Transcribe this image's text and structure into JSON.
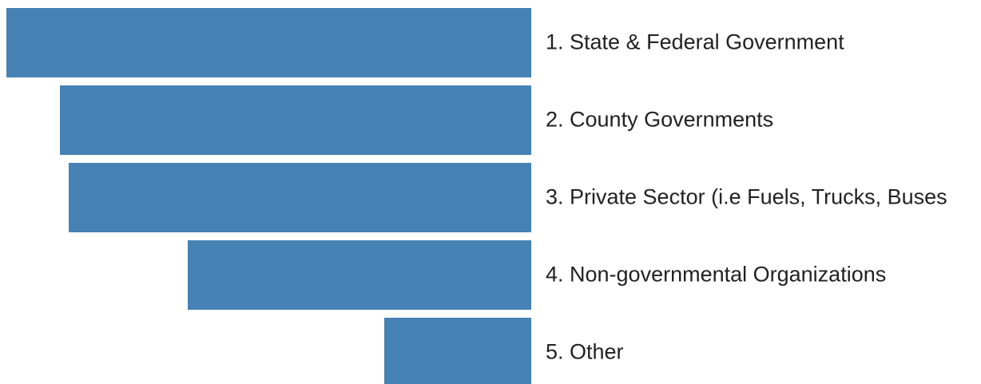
{
  "chart_data": {
    "type": "bar",
    "orientation": "horizontal",
    "categories": [
      "1. State & Federal Government",
      "2. County Governments",
      "3. Private Sector (i.e Fuels, Trucks, Buses",
      "4. Non-governmental Organizations",
      "5. Other"
    ],
    "values": [
      657,
      590,
      579,
      430,
      184
    ],
    "color": "#4682b4"
  }
}
